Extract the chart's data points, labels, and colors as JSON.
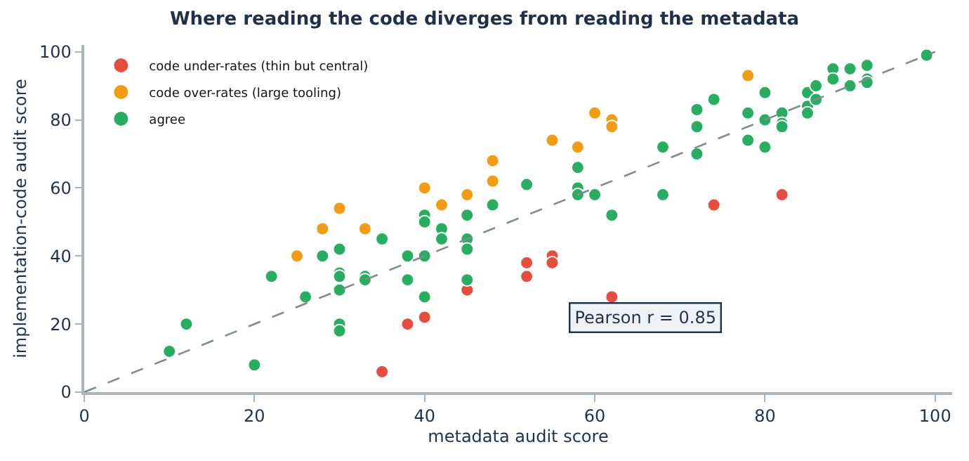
{
  "chart_data": {
    "type": "scatter",
    "title": "Where reading the code diverges from reading the metadata",
    "xlabel": "metadata audit score",
    "ylabel": "implementation-code audit score",
    "xlim": [
      0,
      102
    ],
    "ylim": [
      0,
      102
    ],
    "xticks": [
      0,
      20,
      40,
      60,
      80,
      100
    ],
    "yticks": [
      0,
      20,
      40,
      60,
      80,
      100
    ],
    "legend": "top left",
    "marker": "circle",
    "series": [
      {
        "name": "code under-rates (thin but central)",
        "color": "#e74c3c",
        "x": [
          35,
          38,
          40,
          45,
          52,
          52,
          55,
          55,
          62,
          74,
          82
        ],
        "values": [
          6,
          20,
          22,
          30,
          38,
          34,
          40,
          38,
          28,
          55,
          58
        ]
      },
      {
        "name": "code over-rates (large tooling)",
        "color": "#f39c12",
        "x": [
          25,
          28,
          30,
          33,
          40,
          42,
          45,
          48,
          48,
          55,
          58,
          60,
          62,
          62,
          78
        ],
        "values": [
          40,
          48,
          54,
          48,
          60,
          55,
          58,
          62,
          68,
          74,
          72,
          82,
          80,
          78,
          93
        ]
      },
      {
        "name": "agree",
        "color": "#27ae60",
        "x": [
          10,
          12,
          20,
          22,
          26,
          28,
          30,
          30,
          30,
          30,
          30,
          30,
          33,
          33,
          35,
          38,
          38,
          40,
          40,
          40,
          40,
          42,
          42,
          45,
          45,
          45,
          45,
          48,
          52,
          58,
          58,
          58,
          60,
          62,
          68,
          68,
          72,
          72,
          72,
          74,
          78,
          78,
          80,
          80,
          80,
          82,
          82,
          82,
          85,
          85,
          85,
          86,
          86,
          88,
          88,
          90,
          90,
          92,
          92,
          92,
          99
        ],
        "values": [
          12,
          20,
          8,
          34,
          28,
          40,
          42,
          35,
          34,
          30,
          20,
          18,
          34,
          33,
          45,
          40,
          33,
          52,
          50,
          40,
          28,
          48,
          45,
          52,
          45,
          42,
          33,
          55,
          61,
          66,
          60,
          58,
          58,
          52,
          72,
          58,
          83,
          78,
          70,
          86,
          82,
          74,
          88,
          80,
          72,
          82,
          79,
          78,
          88,
          84,
          82,
          90,
          86,
          95,
          92,
          95,
          90,
          96,
          92,
          91,
          99
        ]
      },
      {
        "type": "line",
        "color": "#7f8c8d",
        "line_style": "dashed",
        "marker": "none",
        "x": [
          0,
          100
        ],
        "values": [
          0,
          100
        ]
      }
    ],
    "annotations": [
      "Pearson r = 0.85"
    ]
  }
}
